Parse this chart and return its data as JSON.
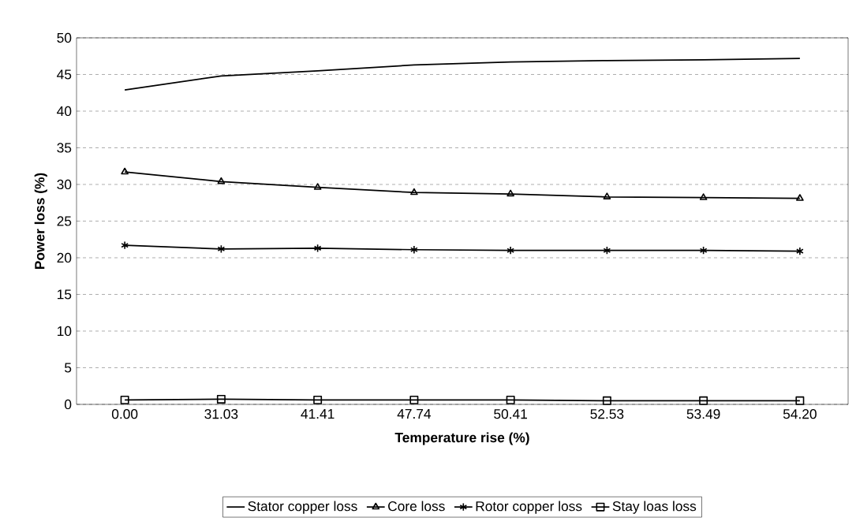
{
  "chart_data": {
    "type": "line",
    "xlabel": "Temperature rise (%)",
    "ylabel": "Power loss (%)",
    "categories": [
      "0.00",
      "31.03",
      "41.41",
      "47.74",
      "50.41",
      "52.53",
      "53.49",
      "54.20"
    ],
    "series": [
      {
        "name": "Stator copper loss",
        "color": "#000000",
        "marker": "none",
        "values": [
          42.9,
          44.8,
          45.5,
          46.3,
          46.7,
          46.9,
          47.0,
          47.2
        ]
      },
      {
        "name": "Core loss",
        "color": "#000000",
        "marker": "triangle",
        "values": [
          31.7,
          30.4,
          29.6,
          28.9,
          28.7,
          28.3,
          28.2,
          28.1
        ]
      },
      {
        "name": "Rotor copper loss",
        "color": "#000000",
        "marker": "cross",
        "values": [
          21.7,
          21.2,
          21.3,
          21.1,
          21.0,
          21.0,
          21.0,
          20.9
        ]
      },
      {
        "name": "Stay loas loss",
        "color": "#000000",
        "marker": "square",
        "values": [
          0.6,
          0.7,
          0.6,
          0.6,
          0.6,
          0.5,
          0.5,
          0.5
        ]
      }
    ],
    "ylim": [
      0,
      50
    ],
    "yticks": [
      0,
      5,
      10,
      15,
      20,
      25,
      30,
      35,
      40,
      45,
      50
    ],
    "grid": "y",
    "legend": "bottom",
    "line_style": "solid"
  }
}
